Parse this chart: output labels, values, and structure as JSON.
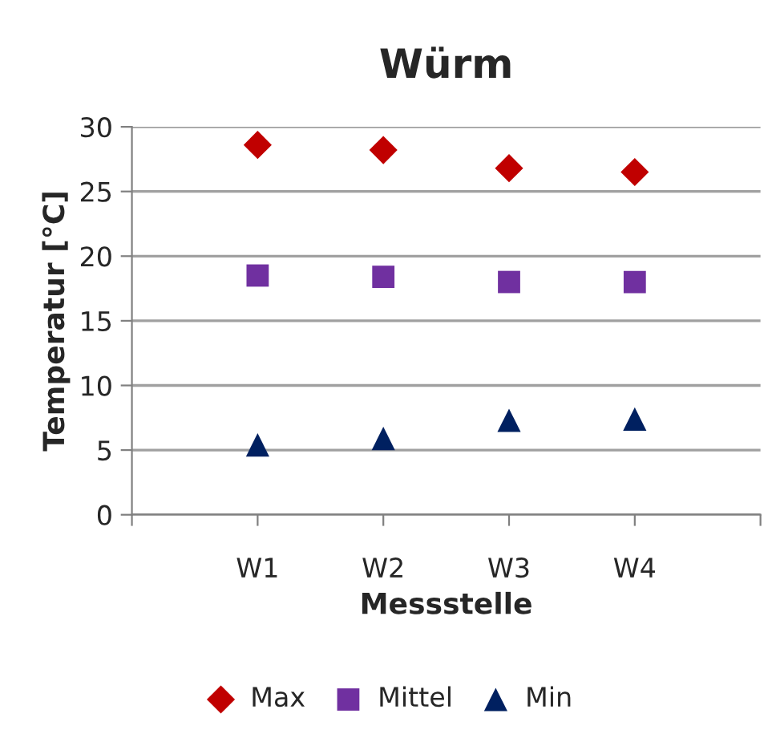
{
  "chart_data": {
    "type": "scatter",
    "title": "Würm",
    "xlabel": "Messstelle",
    "ylabel": "Temperatur [°C]",
    "categories": [
      null,
      "W1",
      "W2",
      "W3",
      "W4",
      null
    ],
    "series": [
      {
        "name": "Max",
        "color": "#c00000",
        "marker": "diamond",
        "values": [
          null,
          28.6,
          28.2,
          26.8,
          26.5,
          null
        ]
      },
      {
        "name": "Mittel",
        "color": "#7030a0",
        "marker": "square",
        "values": [
          null,
          18.5,
          18.4,
          18.0,
          18.0,
          null
        ]
      },
      {
        "name": "Min",
        "color": "#002060",
        "marker": "triangle",
        "values": [
          null,
          5.4,
          5.9,
          7.3,
          7.4,
          null
        ]
      }
    ],
    "ylim": [
      0,
      30
    ],
    "yticks": [
      0,
      5,
      10,
      15,
      20,
      25,
      30
    ],
    "grid": "y",
    "legend": "bottom"
  }
}
